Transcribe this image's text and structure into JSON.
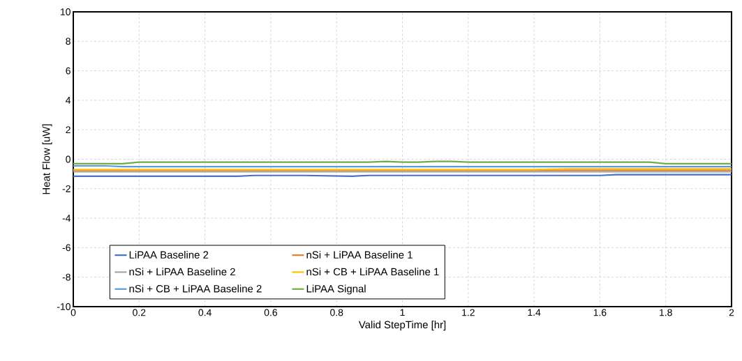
{
  "chart_data": {
    "type": "line",
    "xlabel": "Valid StepTime [hr]",
    "ylabel": "Heat Flow [uW]",
    "xlim": [
      0,
      2
    ],
    "ylim": [
      -10,
      10
    ],
    "xticks": [
      0,
      0.2,
      0.4,
      0.6,
      0.8,
      1,
      1.2,
      1.4,
      1.6,
      1.8,
      2
    ],
    "yticks": [
      -10,
      -8,
      -6,
      -4,
      -2,
      0,
      2,
      4,
      6,
      8,
      10
    ],
    "grid": true,
    "legend": "bottom",
    "line_style": "solid",
    "marker": "none",
    "series": [
      {
        "name": "LiPAA Baseline 2",
        "color": "#4472c4",
        "x": [
          0,
          0.5,
          0.55,
          0.7,
          0.85,
          0.9,
          1.0,
          1.6,
          1.65,
          2
        ],
        "values": [
          -1.15,
          -1.15,
          -1.1,
          -1.1,
          -1.15,
          -1.1,
          -1.1,
          -1.1,
          -1.05,
          -1.05
        ]
      },
      {
        "name": "nSi + LiPAA Baseline 1",
        "color": "#ed7d31",
        "x": [
          0,
          0.5,
          1.0,
          1.5,
          2
        ],
        "values": [
          -0.75,
          -0.75,
          -0.75,
          -0.75,
          -0.75
        ]
      },
      {
        "name": "nSi + LiPAA Baseline 2",
        "color": "#a5a5a5",
        "x": [
          0,
          0.5,
          1.0,
          1.5,
          2
        ],
        "values": [
          -0.85,
          -0.85,
          -0.85,
          -0.85,
          -0.85
        ]
      },
      {
        "name": "nSi + CB + LiPAA Baseline 1",
        "color": "#ffc000",
        "x": [
          0,
          0.5,
          1.0,
          1.4,
          1.5,
          2
        ],
        "values": [
          -0.7,
          -0.7,
          -0.7,
          -0.7,
          -0.65,
          -0.65
        ]
      },
      {
        "name": "nSi + CB +  LiPAA Baseline 2",
        "color": "#5b9bd5",
        "x": [
          0,
          0.1,
          0.15,
          0.2,
          1.0,
          2
        ],
        "values": [
          -0.45,
          -0.45,
          -0.5,
          -0.5,
          -0.5,
          -0.5
        ]
      },
      {
        "name": "LiPAA Signal",
        "color": "#70ad47",
        "x": [
          0,
          0.15,
          0.2,
          0.5,
          0.9,
          0.95,
          1.0,
          1.05,
          1.1,
          1.15,
          1.2,
          1.75,
          1.8,
          2
        ],
        "values": [
          -0.3,
          -0.3,
          -0.2,
          -0.2,
          -0.2,
          -0.15,
          -0.2,
          -0.2,
          -0.15,
          -0.15,
          -0.2,
          -0.2,
          -0.3,
          -0.3
        ]
      }
    ]
  }
}
